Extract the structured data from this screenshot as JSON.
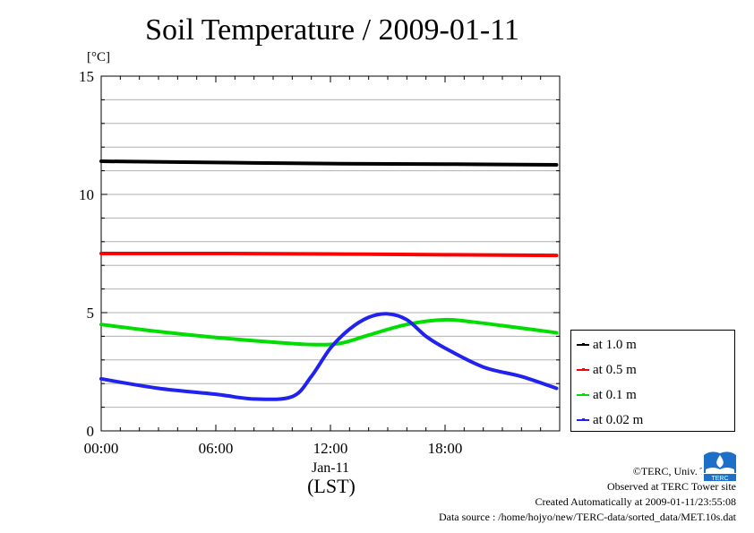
{
  "chart_data": {
    "type": "line",
    "title": "Soil Temperature / 2009-01-11",
    "ylabel": "[°C]",
    "xunit": "(LST)",
    "xdate": "Jan-11",
    "ylim": [
      0,
      15
    ],
    "xlim": [
      "00:00",
      "24:00"
    ],
    "yticks": [
      "0",
      "5",
      "10",
      "15"
    ],
    "xticks": [
      "00:00",
      "06:00",
      "12:00",
      "18:00"
    ],
    "grid": true,
    "legend_position": "right",
    "series": [
      {
        "name": "at 1.0 m",
        "color": "#000000",
        "x": [
          "00:00",
          "06:00",
          "12:00",
          "18:00",
          "23:50"
        ],
        "y": [
          11.4,
          11.35,
          11.3,
          11.28,
          11.25
        ]
      },
      {
        "name": "at 0.5 m",
        "color": "#ff0000",
        "x": [
          "00:00",
          "06:00",
          "12:00",
          "18:00",
          "23:50"
        ],
        "y": [
          7.5,
          7.5,
          7.48,
          7.45,
          7.42
        ]
      },
      {
        "name": "at 0.1 m",
        "color": "#00dd00",
        "x": [
          "00:00",
          "03:00",
          "06:00",
          "09:00",
          "11:00",
          "12:30",
          "14:00",
          "16:00",
          "18:00",
          "19:30",
          "21:00",
          "23:50"
        ],
        "y": [
          4.5,
          4.2,
          3.95,
          3.75,
          3.65,
          3.7,
          4.05,
          4.5,
          4.7,
          4.6,
          4.45,
          4.15
        ]
      },
      {
        "name": "at 0.02 m",
        "color": "#2222ee",
        "x": [
          "00:00",
          "03:00",
          "06:00",
          "08:00",
          "10:00",
          "11:00",
          "12:00",
          "13:00",
          "14:00",
          "15:00",
          "16:00",
          "17:00",
          "18:00",
          "20:00",
          "22:00",
          "23:50"
        ],
        "y": [
          2.2,
          1.8,
          1.55,
          1.35,
          1.45,
          2.3,
          3.5,
          4.3,
          4.8,
          4.95,
          4.7,
          4.0,
          3.5,
          2.7,
          2.3,
          1.8
        ]
      }
    ]
  },
  "credits": {
    "copyright": "©TERC, Univ. Tsukuba",
    "observed": "Observed at TERC Tower site",
    "created": "Created Automatically at 2009-01-11/23:55:08",
    "source": "Data source : /home/hojyo/new/TERC-data/sorted_data/MET.10s.dat"
  }
}
